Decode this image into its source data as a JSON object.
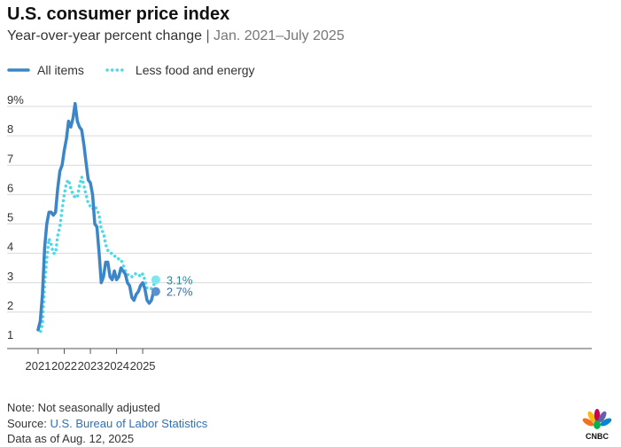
{
  "title": "U.S. consumer price index",
  "subtitle": {
    "main": "Year-over-year percent change",
    "separator": "|",
    "range": "Jan. 2021–July 2025"
  },
  "legend": {
    "items": [
      {
        "label": "All items",
        "color": "#3a86c8",
        "style": "solid"
      },
      {
        "label": "Less food and energy",
        "color": "#4dd9e6",
        "style": "dotted"
      }
    ]
  },
  "footer": {
    "note": "Note: Not seasonally adjusted",
    "source_prefix": "Source:",
    "source_link": "U.S. Bureau of Labor Statistics",
    "as_of": "Data as of Aug. 12, 2025"
  },
  "logo": {
    "text": "CNBC",
    "icon": "peacock-icon"
  },
  "chart_data": {
    "type": "line",
    "ylim": [
      1,
      9
    ],
    "xlim": [
      "2021-01",
      "2025-07"
    ],
    "y_ticks": [
      "1",
      "2",
      "3",
      "4",
      "5",
      "6",
      "7",
      "8",
      "9%"
    ],
    "x_ticks": [
      "2021",
      "2022",
      "2023",
      "2024",
      "2025"
    ],
    "grid": true,
    "x": [
      "2021-01",
      "2021-02",
      "2021-03",
      "2021-04",
      "2021-05",
      "2021-06",
      "2021-07",
      "2021-08",
      "2021-09",
      "2021-10",
      "2021-11",
      "2021-12",
      "2022-01",
      "2022-02",
      "2022-03",
      "2022-04",
      "2022-05",
      "2022-06",
      "2022-07",
      "2022-08",
      "2022-09",
      "2022-10",
      "2022-11",
      "2022-12",
      "2023-01",
      "2023-02",
      "2023-03",
      "2023-04",
      "2023-05",
      "2023-06",
      "2023-07",
      "2023-08",
      "2023-09",
      "2023-10",
      "2023-11",
      "2023-12",
      "2024-01",
      "2024-02",
      "2024-03",
      "2024-04",
      "2024-05",
      "2024-06",
      "2024-07",
      "2024-08",
      "2024-09",
      "2024-10",
      "2024-11",
      "2024-12",
      "2025-01",
      "2025-02",
      "2025-03",
      "2025-04",
      "2025-05",
      "2025-06",
      "2025-07"
    ],
    "series": [
      {
        "name": "All items",
        "color": "#3a86c8",
        "values": [
          1.4,
          1.7,
          2.6,
          4.2,
          5.0,
          5.4,
          5.4,
          5.3,
          5.4,
          6.2,
          6.8,
          7.0,
          7.5,
          7.9,
          8.5,
          8.3,
          8.6,
          9.1,
          8.5,
          8.3,
          8.2,
          7.7,
          7.1,
          6.5,
          6.4,
          6.0,
          5.0,
          4.9,
          4.0,
          3.0,
          3.2,
          3.7,
          3.7,
          3.2,
          3.1,
          3.4,
          3.1,
          3.2,
          3.5,
          3.4,
          3.3,
          3.0,
          2.9,
          2.5,
          2.4,
          2.6,
          2.7,
          2.9,
          3.0,
          2.8,
          2.4,
          2.3,
          2.4,
          2.7,
          2.7
        ],
        "end_label": "2.7%"
      },
      {
        "name": "Less food and energy",
        "color": "#4dd9e6",
        "values": [
          1.4,
          1.3,
          1.6,
          3.0,
          3.8,
          4.5,
          4.3,
          4.0,
          4.0,
          4.6,
          4.9,
          5.5,
          6.0,
          6.4,
          6.5,
          6.2,
          6.0,
          5.9,
          5.9,
          6.3,
          6.6,
          6.3,
          6.0,
          5.7,
          5.6,
          5.5,
          5.6,
          5.5,
          5.3,
          4.8,
          4.7,
          4.3,
          4.1,
          4.0,
          4.0,
          3.9,
          3.9,
          3.8,
          3.8,
          3.6,
          3.4,
          3.3,
          3.2,
          3.2,
          3.3,
          3.3,
          3.3,
          3.2,
          3.3,
          3.1,
          2.8,
          2.8,
          2.8,
          2.9,
          3.1
        ],
        "end_label": "3.1%"
      }
    ]
  }
}
